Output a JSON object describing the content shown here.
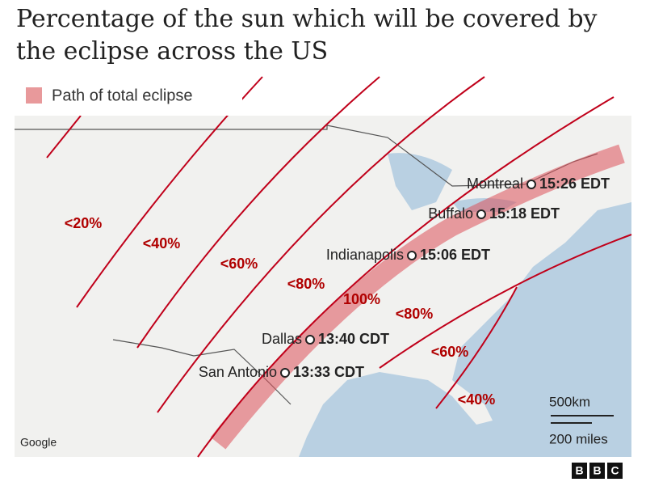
{
  "title": "Percentage of the sun which will be covered by the eclipse across the US",
  "legend": {
    "label": "Path of total eclipse"
  },
  "contour_labels": [
    "<20%",
    "<40%",
    "<60%",
    "<80%",
    "100%",
    "<80%",
    "<60%",
    "<40%"
  ],
  "cities": [
    {
      "name": "Montreal",
      "time": "15:26 EDT"
    },
    {
      "name": "Buffalo",
      "time": "15:18 EDT"
    },
    {
      "name": "Indianapolis",
      "time": "15:06 EDT"
    },
    {
      "name": "Dallas",
      "time": "13:40 CDT"
    },
    {
      "name": "San Antonio",
      "time": "13:33 CDT"
    }
  ],
  "scale": {
    "km": "500km",
    "miles": "200 miles"
  },
  "attribution": "Google",
  "logo": [
    "B",
    "B",
    "C"
  ]
}
